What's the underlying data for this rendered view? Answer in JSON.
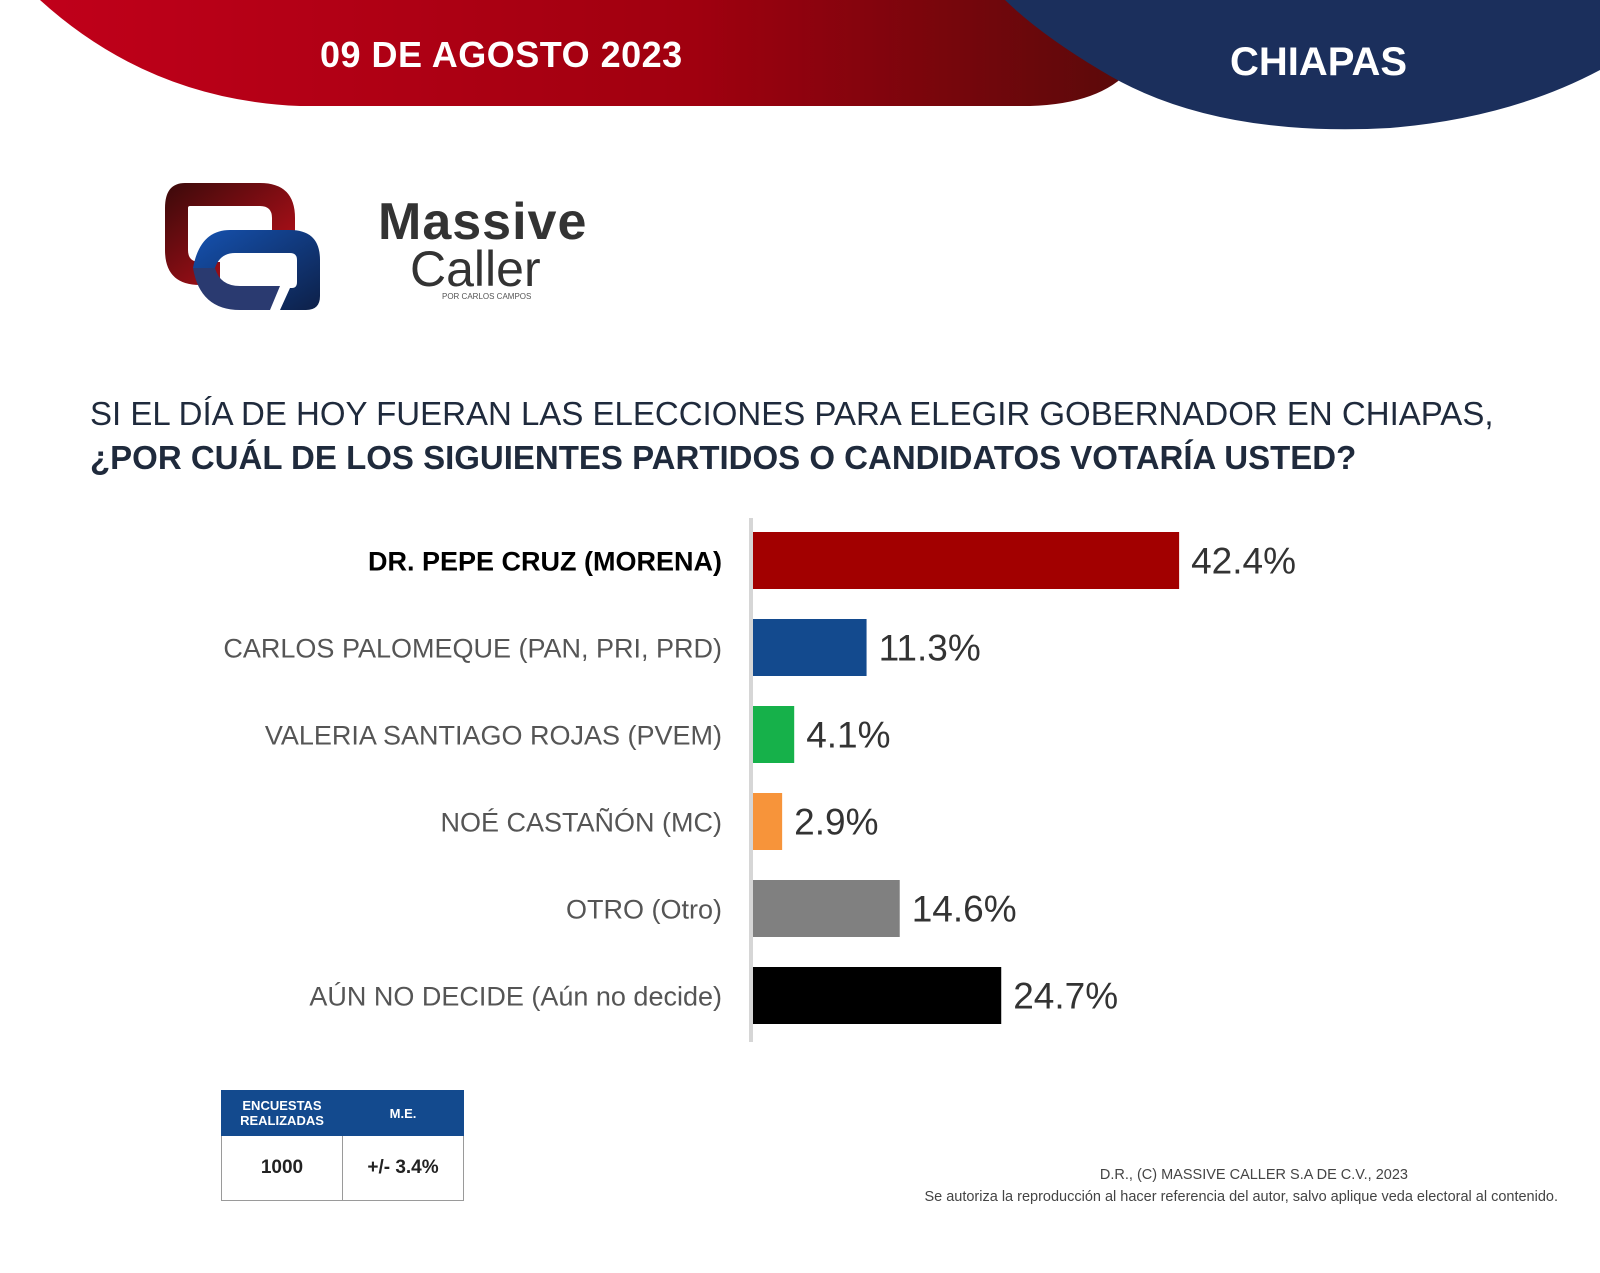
{
  "header": {
    "date": "09 DE AGOSTO 2023",
    "region": "CHIAPAS"
  },
  "brand": {
    "line1": "Massive",
    "line2": "Caller",
    "line3": "POR CARLOS CAMPOS",
    "logo_icon": "interlocked-q-logo"
  },
  "question": {
    "line1": "SI EL DÍA DE HOY FUERAN LAS ELECCIONES PARA ELEGIR GOBERNADOR EN CHIAPAS,",
    "line2": "¿POR CUÁL DE LOS SIGUIENTES PARTIDOS O CANDIDATOS  VOTARÍA USTED?"
  },
  "chart_data": {
    "type": "bar",
    "orientation": "horizontal",
    "categories": [
      "DR. PEPE CRUZ (MORENA)",
      "CARLOS PALOMEQUE (PAN, PRI, PRD)",
      "VALERIA SANTIAGO ROJAS (PVEM)",
      "NOÉ CASTAÑÓN (MC)",
      "OTRO (Otro)",
      "AÚN NO DECIDE (Aún no decide)"
    ],
    "values": [
      42.4,
      11.3,
      4.1,
      2.9,
      14.6,
      24.7
    ],
    "value_labels": [
      "42.4%",
      "11.3%",
      "4.1%",
      "2.9%",
      "14.6%",
      "24.7%"
    ],
    "colors": [
      "#a20000",
      "#134a8e",
      "#16b14a",
      "#f7943a",
      "#808080",
      "#000000"
    ],
    "highlight_index": 0,
    "xlim": [
      0,
      50
    ],
    "grid": false,
    "legend": "none"
  },
  "info_table": {
    "headers": [
      "ENCUESTAS REALIZADAS",
      "M.E."
    ],
    "values": [
      "1000",
      "+/- 3.4%"
    ]
  },
  "footer": {
    "copyright": "D.R., (C) MASSIVE CALLER S.A DE C.V., 2023",
    "notice": "Se autoriza la reproducción al hacer referencia del autor, salvo aplique veda electoral al contenido."
  }
}
